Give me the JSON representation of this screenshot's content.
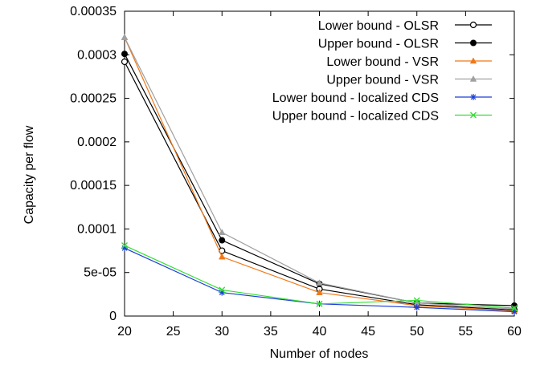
{
  "chart_data": {
    "type": "line",
    "title": "",
    "xlabel": "Number of nodes",
    "ylabel": "Capacity per flow",
    "xlim": [
      20,
      60
    ],
    "ylim": [
      0,
      0.00035
    ],
    "x_ticks": [
      "20",
      "25",
      "30",
      "35",
      "40",
      "45",
      "50",
      "55",
      "60"
    ],
    "y_ticks": [
      "0",
      "5e-05",
      "0.0001",
      "0.00015",
      "0.0002",
      "0.00025",
      "0.0003",
      "0.00035"
    ],
    "x": [
      20,
      30,
      40,
      50,
      60
    ],
    "grid": false,
    "legend_position": "top-right",
    "series": [
      {
        "name": "Lower bound - OLSR",
        "values": [
          0.000292,
          7.5e-05,
          3.1e-05,
          1.3e-05,
          7e-06
        ],
        "color": "#000000",
        "marker": "circle-open"
      },
      {
        "name": "Upper bound - OLSR",
        "values": [
          0.000301,
          8.7e-05,
          3.7e-05,
          1.5e-05,
          1.2e-05
        ],
        "color": "#000000",
        "marker": "circle-filled"
      },
      {
        "name": "Lower bound - VSR",
        "values": [
          0.00032,
          6.8e-05,
          2.7e-05,
          1.2e-05,
          6e-06
        ],
        "color": "#f07818",
        "marker": "triangle"
      },
      {
        "name": "Upper bound - VSR",
        "values": [
          0.00032,
          9.6e-05,
          3.8e-05,
          1.5e-05,
          8e-06
        ],
        "color": "#a0a0a0",
        "marker": "triangle"
      },
      {
        "name": "Lower bound - localized CDS",
        "values": [
          7.8e-05,
          2.7e-05,
          1.4e-05,
          1e-05,
          5e-06
        ],
        "color": "#1a3fd8",
        "marker": "asterisk"
      },
      {
        "name": "Upper bound - localized CDS",
        "values": [
          8.1e-05,
          3e-05,
          1.4e-05,
          1.8e-05,
          9e-06
        ],
        "color": "#33dd33",
        "marker": "x"
      }
    ]
  }
}
